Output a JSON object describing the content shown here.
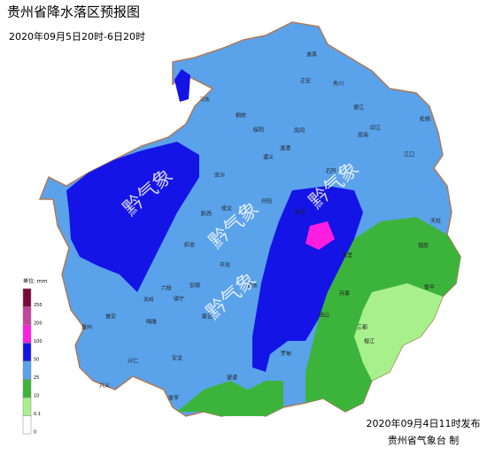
{
  "header": {
    "title": "贵州省降水落区预报图",
    "subtitle": "2020年09月5日20时-6日20时"
  },
  "legend": {
    "unit": "单位: mm",
    "labels": [
      "250",
      "200",
      "100",
      "50",
      "25",
      "10",
      "0.1",
      "0"
    ],
    "colors": [
      "#7a0a3c",
      "#c2449a",
      "#ff1ee0",
      "#1414e6",
      "#5aa2ea",
      "#3cb43c",
      "#a8f08c",
      "#ffffff"
    ]
  },
  "watermarks": [
    "黔气象",
    "黔气象",
    "黔气象",
    "黔气象"
  ],
  "places": [
    "道真",
    "正安",
    "务川",
    "习水",
    "桐梓",
    "绥阳",
    "凤冈",
    "德江",
    "思南",
    "印江",
    "江口",
    "松桃",
    "遵义",
    "湄潭",
    "石阡",
    "金沙",
    "黔西",
    "修文",
    "开阳",
    "瓮安",
    "织金",
    "平坝",
    "安顺",
    "六枝",
    "镇宁",
    "关岭",
    "紫云",
    "晴隆",
    "兴仁",
    "安龙",
    "册亨",
    "望谟",
    "罗甸",
    "独山",
    "三都",
    "榕江",
    "黎平",
    "天柱",
    "锦屏",
    "凯里",
    "丹寨",
    "盘州",
    "普安",
    "兴义",
    "惠水"
  ],
  "footer": {
    "issued": "2020年09月4日11时发布",
    "agency": "贵州省气象台 制"
  }
}
